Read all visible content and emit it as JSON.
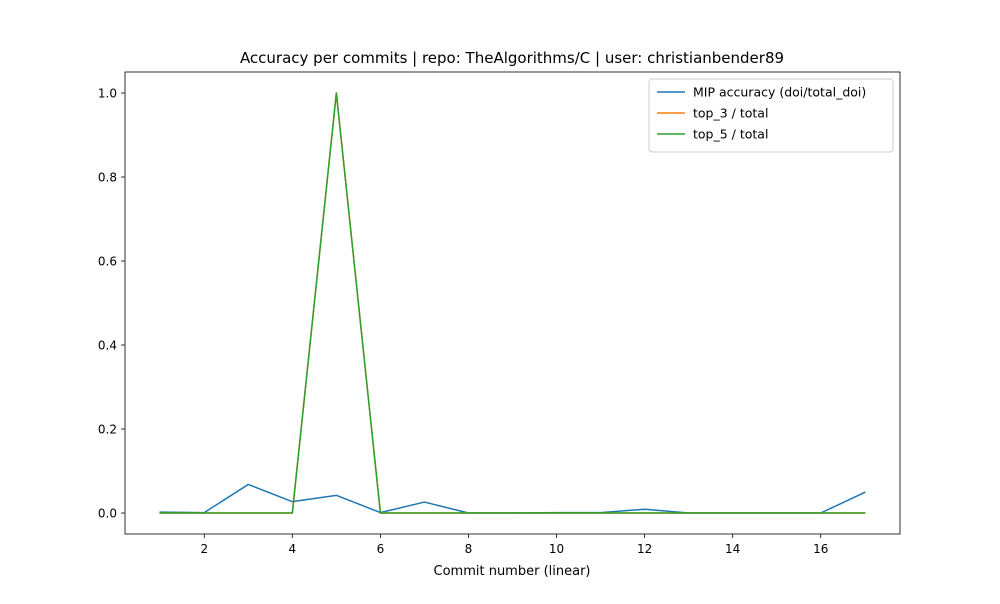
{
  "chart_data": {
    "type": "line",
    "title": "Accuracy per commits | repo: TheAlgorithms/C | user: christianbender89",
    "xlabel": "Commit number (linear)",
    "ylabel": "",
    "xlim": [
      0.2,
      17.8
    ],
    "ylim": [
      -0.05,
      1.05
    ],
    "xticks": [
      2,
      4,
      6,
      8,
      10,
      12,
      14,
      16
    ],
    "yticks": [
      0.0,
      0.2,
      0.4,
      0.6,
      0.8,
      1.0
    ],
    "grid": false,
    "legend_position": "top-right",
    "x": [
      1,
      2,
      3,
      4,
      5,
      6,
      7,
      8,
      9,
      10,
      11,
      12,
      13,
      14,
      15,
      16,
      17
    ],
    "series": [
      {
        "name": "MIP accuracy (doi/total_doi)",
        "color": "#1f77b4",
        "values": [
          0.002,
          0.001,
          0.068,
          0.027,
          0.042,
          0.001,
          0.026,
          0.0,
          0.0,
          0.001,
          0.001,
          0.009,
          0.0,
          0.0,
          0.0,
          0.0,
          0.049
        ]
      },
      {
        "name": "top_3 / total",
        "color": "#ff7f0e",
        "values": [
          0,
          0,
          0,
          0,
          1.0,
          0,
          0,
          0,
          0,
          0,
          0,
          0,
          0,
          0,
          0,
          0,
          0
        ]
      },
      {
        "name": "top_5 / total",
        "color": "#2ca02c",
        "values": [
          0,
          0,
          0,
          0,
          1.0,
          0,
          0,
          0,
          0,
          0,
          0,
          0,
          0,
          0,
          0,
          0,
          0
        ]
      }
    ]
  }
}
